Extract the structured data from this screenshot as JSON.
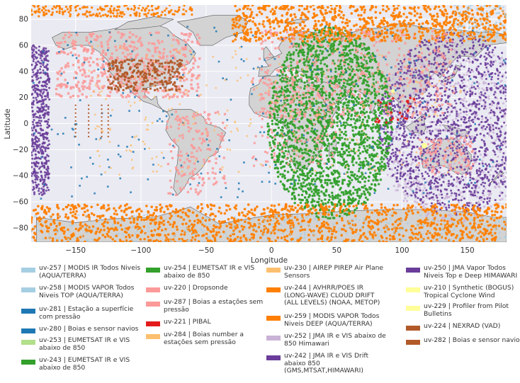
{
  "map": {
    "xlabel": "Longitude",
    "ylabel": "Latitude",
    "xlim": [
      -184,
      180
    ],
    "ylim": [
      -91,
      91
    ],
    "xticks": [
      -150,
      -100,
      -50,
      0,
      50,
      100,
      150
    ],
    "yticks": [
      -80,
      -60,
      -40,
      -20,
      0,
      20,
      40,
      60,
      80
    ],
    "xtick_labels": [
      "−150",
      "−100",
      "−50",
      "0",
      "50",
      "100",
      "150"
    ],
    "ytick_labels": [
      "−80",
      "−60",
      "−40",
      "−20",
      "0",
      "20",
      "40",
      "60",
      "80"
    ],
    "background": "#eaeaf2",
    "land_color": "#d3d3d3",
    "grid": true
  },
  "legend": [
    {
      "label": "uv-257 | MODIS IR Todos Niveis (AQUA/TERRA)",
      "color": "#a6cee3"
    },
    {
      "label": "uv-258 | MODIS VAPOR Todos Niveis TOP (AQUA/TERRA)",
      "color": "#a6cee3"
    },
    {
      "label": "uv-281 | Estação a superfície com pressão",
      "color": "#1f78b4"
    },
    {
      "label": "uv-280 | Boias e sensor navios",
      "color": "#1f78b4"
    },
    {
      "label": "uv-253 | EUMETSAT IR e VIS abaixo de 850",
      "color": "#b2df8a"
    },
    {
      "label": "uv-243 | EUMETSAT IR e VIS abaixo de 850",
      "color": "#33a02c"
    },
    {
      "label": "uv-254 | EUMETSAT IR e VIS abaixo de 850",
      "color": "#33a02c"
    },
    {
      "label": "uv-220 | Dropsonde",
      "color": "#fb9a99"
    },
    {
      "label": "uv-287 | Boias a estações sem pressão",
      "color": "#fb9a99"
    },
    {
      "label": "uv-221 | PIBAL",
      "color": "#e31a1c"
    },
    {
      "label": "uv-284 | Boias number a estações sem pressão",
      "color": "#fdbf6f"
    },
    {
      "label": "uv-230 | AIREP PIREP Air Plane Sensors",
      "color": "#fdbf6f"
    },
    {
      "label": "uv-244 | AVHRR/POES IR (LONG-WAVE) CLOUD DRIFT (ALL LEVELS) (NOAA, METOP)",
      "color": "#ff7f00"
    },
    {
      "label": "uv-259 | MODIS VAPOR Todos Niveis DEEP (AQUA/TERRA)",
      "color": "#ff7f00"
    },
    {
      "label": "uv-252 | JMA IR e VIS abaixo de 850 Himawari",
      "color": "#cab2d6"
    },
    {
      "label": "uv-242 | JMA IR e VIS Drift abaixo 850 (GMS,MTSAT,HIMAWARI)",
      "color": "#6a3d9a"
    },
    {
      "label": "uv-250 | JMA Vapor Todos Niveis Top e Deep HIMAWARI",
      "color": "#6a3d9a"
    },
    {
      "label": "uv-210 | Synthetic (BOGUS) Tropical Cyclone Wind",
      "color": "#ffff99"
    },
    {
      "label": "uv-229 | Profiler from Pilot Bulletins",
      "color": "#ffff99"
    },
    {
      "label": "uv-224 | NEXRAD (VAD)",
      "color": "#b15928"
    },
    {
      "label": "uv-282 | Boias e sensor navios",
      "color": "#b15928"
    }
  ]
}
